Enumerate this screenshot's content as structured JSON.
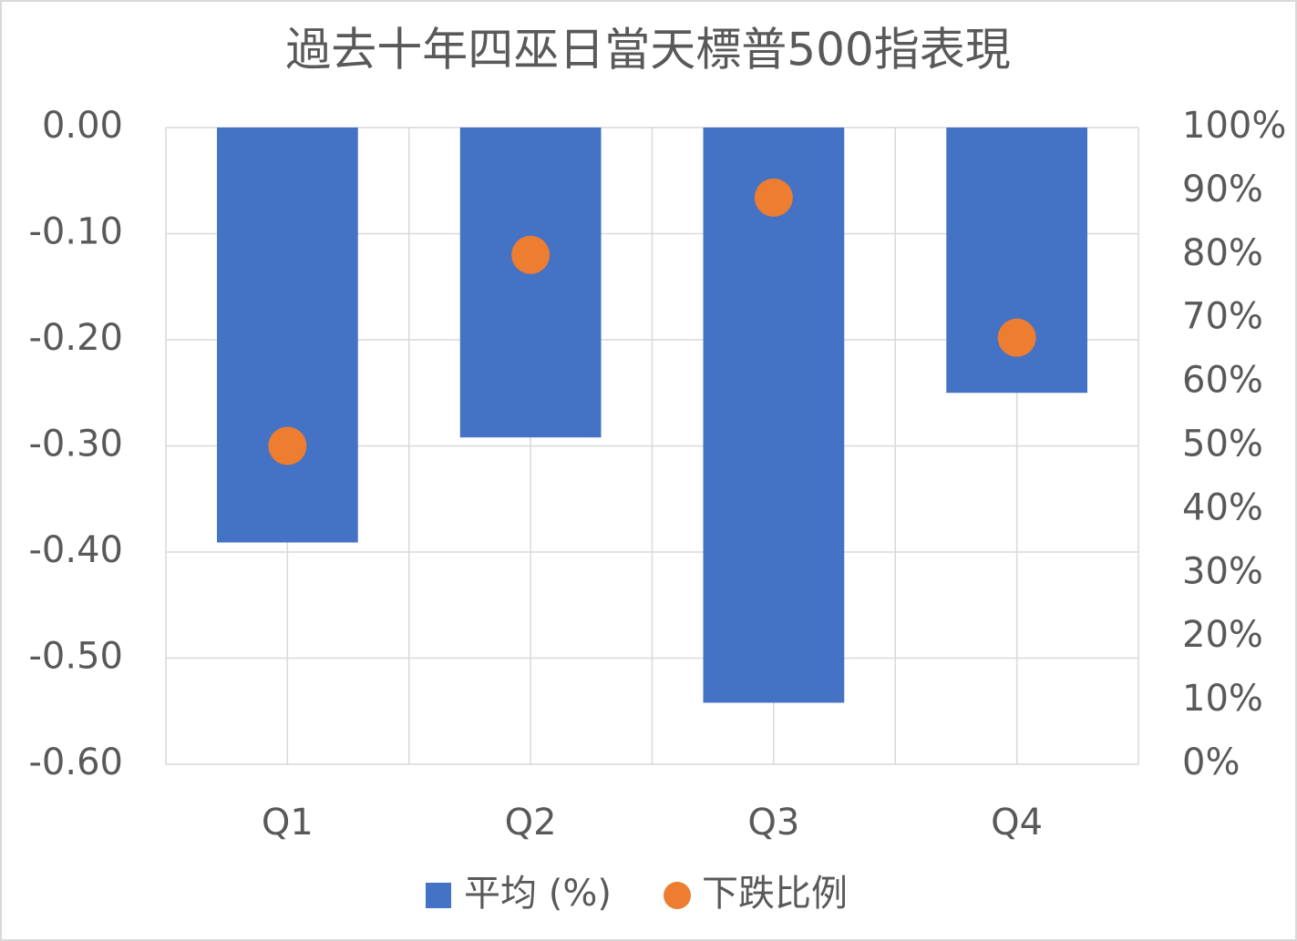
{
  "chart_data": {
    "type": "bar_scatter",
    "title": "過去十年四巫日當天標普500指表現",
    "categories": [
      "Q1",
      "Q2",
      "Q3",
      "Q4"
    ],
    "series": [
      {
        "name": "平均 (%)",
        "color": "#4472c4",
        "values": [
          -0.391,
          -0.292,
          -0.542,
          -0.25
        ]
      },
      {
        "name": "下跌比例",
        "color": "#ed7d31",
        "axis": "y2",
        "values": [
          50,
          80,
          89,
          67
        ]
      }
    ],
    "ylim": [
      -0.6,
      0
    ],
    "yticks": [
      {
        "value": 0,
        "label": "0.00"
      },
      {
        "value": -0.1,
        "label": "-0.10"
      },
      {
        "value": -0.2,
        "label": "-0.20"
      },
      {
        "value": -0.3,
        "label": "-0.30"
      },
      {
        "value": -0.4,
        "label": "-0.40"
      },
      {
        "value": -0.5,
        "label": "-0.50"
      },
      {
        "value": -0.6,
        "label": "-0.60"
      }
    ],
    "y2lim": [
      0,
      100
    ],
    "y2ticks": [
      {
        "value": 0,
        "label": "0%"
      },
      {
        "value": 10,
        "label": "10%"
      },
      {
        "value": 20,
        "label": "20%"
      },
      {
        "value": 30,
        "label": "30%"
      },
      {
        "value": 40,
        "label": "40%"
      },
      {
        "value": 50,
        "label": "50%"
      },
      {
        "value": 60,
        "label": "60%"
      },
      {
        "value": 70,
        "label": "70%"
      },
      {
        "value": 80,
        "label": "80%"
      },
      {
        "value": 90,
        "label": "90%"
      },
      {
        "value": 100,
        "label": "100%"
      }
    ],
    "grid": true,
    "legend": "bottom"
  }
}
